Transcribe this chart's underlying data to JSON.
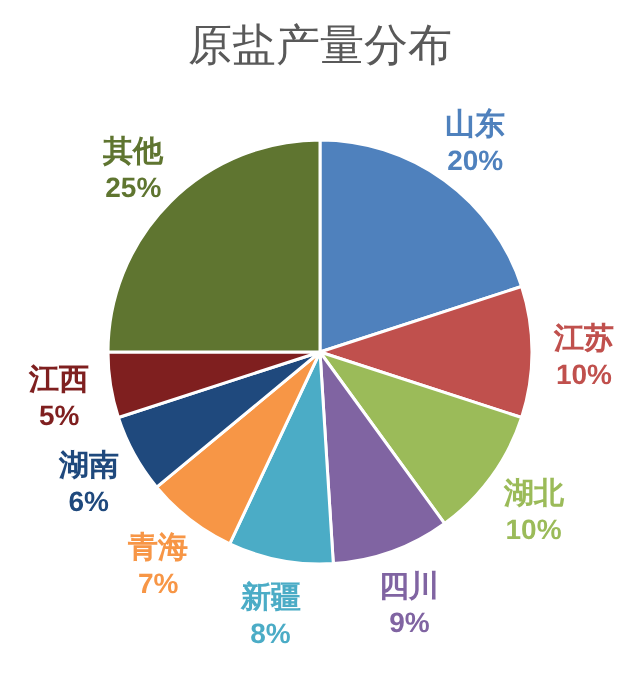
{
  "chart_data": {
    "type": "pie",
    "title": "原盐产量分布",
    "categories": [
      "山东",
      "江苏",
      "湖北",
      "四川",
      "新疆",
      "青海",
      "湖南",
      "江西",
      "其他"
    ],
    "values": [
      20,
      10,
      10,
      9,
      8,
      7,
      6,
      5,
      25
    ],
    "value_labels": [
      "20%",
      "10%",
      "10%",
      "9%",
      "8%",
      "7%",
      "6%",
      "5%",
      "25%"
    ],
    "colors": [
      "#4f81bd",
      "#c0504d",
      "#9bbb59",
      "#8064a2",
      "#4bacc6",
      "#f79646",
      "#1f497d",
      "#7f1f1f",
      "#5f7530"
    ],
    "legend": false
  }
}
